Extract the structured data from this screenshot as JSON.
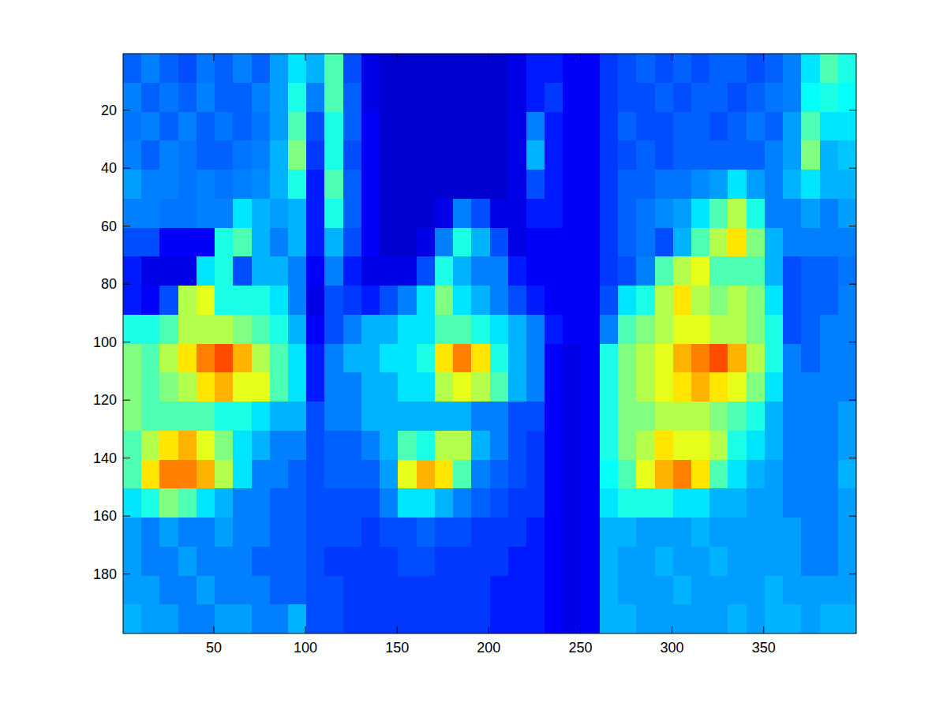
{
  "chart_data": {
    "type": "heatmap",
    "xlim": [
      0.5,
      400.5
    ],
    "ylim": [
      0.5,
      200.5
    ],
    "xticks": [
      50,
      100,
      150,
      200,
      250,
      300,
      350
    ],
    "yticks": [
      20,
      40,
      60,
      80,
      100,
      120,
      140,
      160,
      180
    ],
    "clim": [
      0,
      100
    ],
    "values": [
      [
        22,
        25,
        22,
        20,
        24,
        22,
        25,
        22,
        28,
        35,
        30,
        45,
        20,
        10,
        8,
        8,
        8,
        8,
        8,
        8,
        8,
        10,
        15,
        15,
        12,
        12,
        18,
        20,
        22,
        20,
        22,
        20,
        22,
        22,
        20,
        22,
        25,
        35,
        45,
        40
      ],
      [
        25,
        22,
        24,
        22,
        25,
        22,
        22,
        25,
        28,
        40,
        25,
        45,
        22,
        10,
        8,
        8,
        8,
        8,
        8,
        8,
        8,
        10,
        15,
        18,
        12,
        12,
        18,
        20,
        20,
        22,
        20,
        22,
        22,
        20,
        22,
        24,
        25,
        38,
        40,
        38
      ],
      [
        24,
        25,
        22,
        25,
        22,
        24,
        22,
        24,
        28,
        45,
        20,
        40,
        22,
        12,
        8,
        8,
        8,
        8,
        8,
        8,
        8,
        10,
        25,
        15,
        12,
        12,
        18,
        22,
        20,
        20,
        22,
        22,
        20,
        22,
        24,
        22,
        28,
        45,
        35,
        35
      ],
      [
        25,
        22,
        25,
        24,
        22,
        22,
        24,
        25,
        30,
        50,
        18,
        40,
        20,
        12,
        8,
        8,
        8,
        8,
        8,
        8,
        8,
        10,
        30,
        15,
        12,
        12,
        18,
        20,
        22,
        20,
        22,
        22,
        22,
        22,
        22,
        25,
        28,
        50,
        30,
        32
      ],
      [
        28,
        25,
        25,
        24,
        25,
        24,
        25,
        26,
        30,
        40,
        15,
        45,
        22,
        12,
        8,
        8,
        8,
        8,
        8,
        8,
        8,
        10,
        20,
        15,
        12,
        12,
        18,
        22,
        22,
        24,
        24,
        26,
        28,
        35,
        28,
        25,
        30,
        35,
        30,
        30
      ],
      [
        25,
        25,
        24,
        24,
        25,
        25,
        35,
        30,
        28,
        30,
        15,
        40,
        22,
        12,
        8,
        8,
        8,
        10,
        25,
        20,
        10,
        10,
        15,
        15,
        12,
        12,
        18,
        22,
        24,
        26,
        28,
        35,
        45,
        55,
        40,
        25,
        25,
        28,
        25,
        28
      ],
      [
        20,
        20,
        12,
        12,
        12,
        40,
        45,
        30,
        25,
        30,
        15,
        30,
        20,
        12,
        8,
        8,
        10,
        25,
        40,
        30,
        20,
        10,
        12,
        12,
        12,
        12,
        18,
        22,
        24,
        20,
        30,
        45,
        55,
        65,
        50,
        30,
        25,
        25,
        25,
        25
      ],
      [
        15,
        10,
        10,
        10,
        35,
        40,
        20,
        30,
        30,
        25,
        12,
        25,
        15,
        10,
        10,
        10,
        20,
        40,
        30,
        25,
        25,
        15,
        12,
        12,
        12,
        12,
        18,
        20,
        25,
        45,
        55,
        60,
        45,
        45,
        45,
        30,
        20,
        22,
        22,
        24
      ],
      [
        15,
        12,
        20,
        55,
        60,
        40,
        40,
        40,
        35,
        25,
        10,
        20,
        18,
        15,
        20,
        25,
        35,
        50,
        35,
        30,
        25,
        20,
        15,
        12,
        12,
        12,
        20,
        35,
        40,
        55,
        65,
        55,
        50,
        55,
        50,
        35,
        20,
        22,
        22,
        25
      ],
      [
        40,
        40,
        45,
        55,
        55,
        55,
        50,
        45,
        40,
        30,
        12,
        20,
        25,
        30,
        30,
        35,
        35,
        45,
        45,
        40,
        35,
        30,
        25,
        15,
        12,
        12,
        25,
        45,
        50,
        55,
        60,
        60,
        55,
        55,
        50,
        40,
        20,
        22,
        25,
        25
      ],
      [
        50,
        45,
        55,
        65,
        75,
        80,
        70,
        55,
        45,
        35,
        15,
        25,
        30,
        30,
        35,
        35,
        40,
        65,
        75,
        65,
        40,
        30,
        25,
        12,
        10,
        12,
        40,
        50,
        55,
        60,
        70,
        75,
        80,
        70,
        55,
        40,
        25,
        22,
        25,
        25
      ],
      [
        50,
        45,
        50,
        55,
        65,
        70,
        60,
        60,
        45,
        35,
        15,
        25,
        25,
        30,
        30,
        35,
        35,
        55,
        60,
        55,
        45,
        30,
        25,
        12,
        10,
        12,
        40,
        50,
        55,
        60,
        65,
        70,
        65,
        60,
        50,
        35,
        25,
        25,
        25,
        25
      ],
      [
        50,
        45,
        45,
        45,
        45,
        40,
        40,
        35,
        30,
        30,
        20,
        25,
        25,
        30,
        30,
        30,
        30,
        30,
        30,
        25,
        25,
        20,
        20,
        12,
        10,
        12,
        40,
        50,
        50,
        55,
        55,
        55,
        50,
        45,
        40,
        30,
        25,
        25,
        25,
        28
      ],
      [
        45,
        55,
        65,
        70,
        60,
        50,
        35,
        30,
        25,
        25,
        20,
        22,
        22,
        25,
        30,
        45,
        40,
        55,
        55,
        30,
        25,
        20,
        18,
        12,
        10,
        12,
        40,
        50,
        55,
        65,
        60,
        60,
        55,
        40,
        35,
        30,
        25,
        25,
        25,
        28
      ],
      [
        45,
        65,
        75,
        75,
        70,
        55,
        35,
        25,
        25,
        22,
        20,
        22,
        22,
        22,
        28,
        60,
        70,
        65,
        45,
        25,
        22,
        20,
        18,
        12,
        10,
        12,
        38,
        45,
        60,
        70,
        75,
        65,
        45,
        35,
        30,
        28,
        25,
        25,
        25,
        30
      ],
      [
        35,
        40,
        50,
        45,
        35,
        30,
        25,
        25,
        22,
        22,
        20,
        20,
        20,
        20,
        25,
        35,
        35,
        30,
        25,
        22,
        20,
        18,
        18,
        12,
        10,
        12,
        35,
        40,
        40,
        40,
        35,
        35,
        30,
        30,
        28,
        28,
        25,
        25,
        25,
        28
      ],
      [
        28,
        25,
        28,
        25,
        25,
        28,
        25,
        25,
        22,
        22,
        20,
        20,
        20,
        18,
        20,
        20,
        22,
        20,
        20,
        18,
        18,
        18,
        15,
        12,
        10,
        12,
        30,
        30,
        28,
        28,
        28,
        30,
        28,
        28,
        28,
        28,
        28,
        25,
        25,
        28
      ],
      [
        28,
        25,
        25,
        28,
        25,
        25,
        25,
        22,
        22,
        22,
        20,
        18,
        18,
        18,
        18,
        20,
        20,
        18,
        18,
        18,
        18,
        15,
        15,
        12,
        10,
        12,
        30,
        28,
        28,
        30,
        28,
        28,
        30,
        28,
        28,
        28,
        28,
        25,
        25,
        28
      ],
      [
        28,
        28,
        25,
        25,
        28,
        25,
        25,
        25,
        22,
        22,
        20,
        20,
        18,
        18,
        18,
        18,
        18,
        18,
        18,
        18,
        15,
        15,
        15,
        12,
        10,
        12,
        30,
        28,
        28,
        28,
        30,
        28,
        28,
        28,
        28,
        30,
        28,
        28,
        28,
        28
      ],
      [
        30,
        28,
        28,
        25,
        25,
        28,
        28,
        25,
        25,
        30,
        20,
        20,
        18,
        18,
        18,
        18,
        18,
        18,
        18,
        18,
        15,
        15,
        15,
        12,
        10,
        12,
        30,
        30,
        28,
        28,
        28,
        28,
        28,
        30,
        28,
        30,
        30,
        28,
        30,
        30
      ]
    ]
  }
}
